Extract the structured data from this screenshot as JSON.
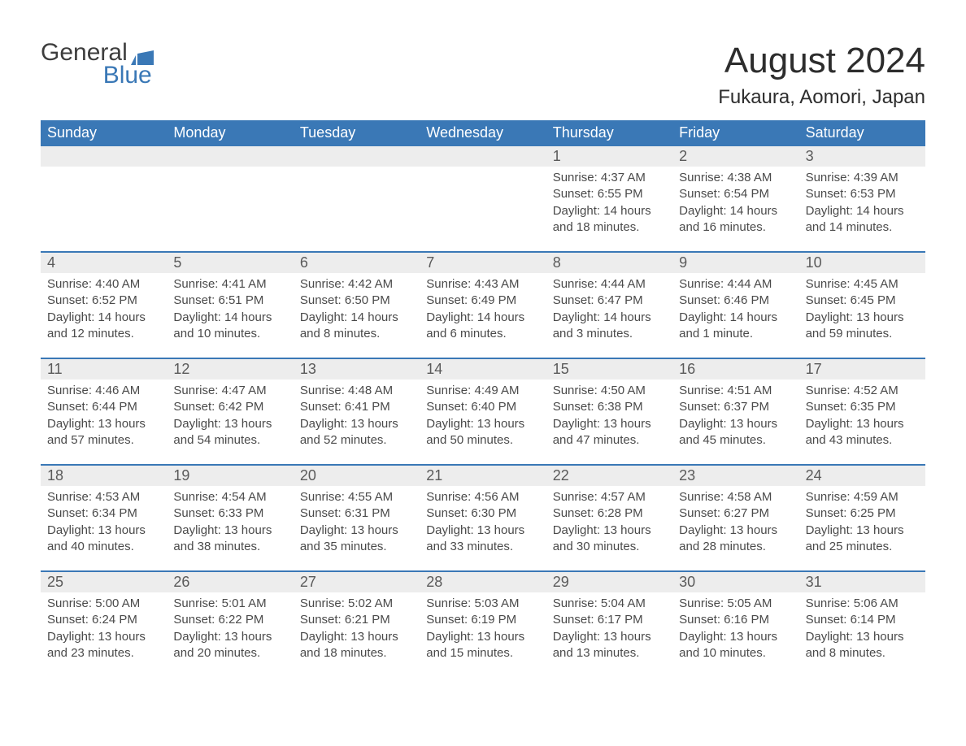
{
  "logo": {
    "word1": "General",
    "word2": "Blue"
  },
  "title": "August 2024",
  "location": "Fukaura, Aomori, Japan",
  "colors": {
    "brand_blue": "#3a78b6",
    "header_text": "#ffffff",
    "daynum_bg": "#ededed",
    "body_text": "#4a4a4a",
    "page_bg": "#ffffff"
  },
  "typography": {
    "title_fontsize": 44,
    "location_fontsize": 24,
    "dow_fontsize": 18,
    "daynum_fontsize": 18,
    "detail_fontsize": 15
  },
  "layout": {
    "type": "table",
    "columns": 7,
    "weeks": 5,
    "first_day_column_index": 4
  },
  "days_of_week": [
    "Sunday",
    "Monday",
    "Tuesday",
    "Wednesday",
    "Thursday",
    "Friday",
    "Saturday"
  ],
  "days": [
    {
      "n": 1,
      "sunrise": "4:37 AM",
      "sunset": "6:55 PM",
      "daylight": "14 hours and 18 minutes."
    },
    {
      "n": 2,
      "sunrise": "4:38 AM",
      "sunset": "6:54 PM",
      "daylight": "14 hours and 16 minutes."
    },
    {
      "n": 3,
      "sunrise": "4:39 AM",
      "sunset": "6:53 PM",
      "daylight": "14 hours and 14 minutes."
    },
    {
      "n": 4,
      "sunrise": "4:40 AM",
      "sunset": "6:52 PM",
      "daylight": "14 hours and 12 minutes."
    },
    {
      "n": 5,
      "sunrise": "4:41 AM",
      "sunset": "6:51 PM",
      "daylight": "14 hours and 10 minutes."
    },
    {
      "n": 6,
      "sunrise": "4:42 AM",
      "sunset": "6:50 PM",
      "daylight": "14 hours and 8 minutes."
    },
    {
      "n": 7,
      "sunrise": "4:43 AM",
      "sunset": "6:49 PM",
      "daylight": "14 hours and 6 minutes."
    },
    {
      "n": 8,
      "sunrise": "4:44 AM",
      "sunset": "6:47 PM",
      "daylight": "14 hours and 3 minutes."
    },
    {
      "n": 9,
      "sunrise": "4:44 AM",
      "sunset": "6:46 PM",
      "daylight": "14 hours and 1 minute."
    },
    {
      "n": 10,
      "sunrise": "4:45 AM",
      "sunset": "6:45 PM",
      "daylight": "13 hours and 59 minutes."
    },
    {
      "n": 11,
      "sunrise": "4:46 AM",
      "sunset": "6:44 PM",
      "daylight": "13 hours and 57 minutes."
    },
    {
      "n": 12,
      "sunrise": "4:47 AM",
      "sunset": "6:42 PM",
      "daylight": "13 hours and 54 minutes."
    },
    {
      "n": 13,
      "sunrise": "4:48 AM",
      "sunset": "6:41 PM",
      "daylight": "13 hours and 52 minutes."
    },
    {
      "n": 14,
      "sunrise": "4:49 AM",
      "sunset": "6:40 PM",
      "daylight": "13 hours and 50 minutes."
    },
    {
      "n": 15,
      "sunrise": "4:50 AM",
      "sunset": "6:38 PM",
      "daylight": "13 hours and 47 minutes."
    },
    {
      "n": 16,
      "sunrise": "4:51 AM",
      "sunset": "6:37 PM",
      "daylight": "13 hours and 45 minutes."
    },
    {
      "n": 17,
      "sunrise": "4:52 AM",
      "sunset": "6:35 PM",
      "daylight": "13 hours and 43 minutes."
    },
    {
      "n": 18,
      "sunrise": "4:53 AM",
      "sunset": "6:34 PM",
      "daylight": "13 hours and 40 minutes."
    },
    {
      "n": 19,
      "sunrise": "4:54 AM",
      "sunset": "6:33 PM",
      "daylight": "13 hours and 38 minutes."
    },
    {
      "n": 20,
      "sunrise": "4:55 AM",
      "sunset": "6:31 PM",
      "daylight": "13 hours and 35 minutes."
    },
    {
      "n": 21,
      "sunrise": "4:56 AM",
      "sunset": "6:30 PM",
      "daylight": "13 hours and 33 minutes."
    },
    {
      "n": 22,
      "sunrise": "4:57 AM",
      "sunset": "6:28 PM",
      "daylight": "13 hours and 30 minutes."
    },
    {
      "n": 23,
      "sunrise": "4:58 AM",
      "sunset": "6:27 PM",
      "daylight": "13 hours and 28 minutes."
    },
    {
      "n": 24,
      "sunrise": "4:59 AM",
      "sunset": "6:25 PM",
      "daylight": "13 hours and 25 minutes."
    },
    {
      "n": 25,
      "sunrise": "5:00 AM",
      "sunset": "6:24 PM",
      "daylight": "13 hours and 23 minutes."
    },
    {
      "n": 26,
      "sunrise": "5:01 AM",
      "sunset": "6:22 PM",
      "daylight": "13 hours and 20 minutes."
    },
    {
      "n": 27,
      "sunrise": "5:02 AM",
      "sunset": "6:21 PM",
      "daylight": "13 hours and 18 minutes."
    },
    {
      "n": 28,
      "sunrise": "5:03 AM",
      "sunset": "6:19 PM",
      "daylight": "13 hours and 15 minutes."
    },
    {
      "n": 29,
      "sunrise": "5:04 AM",
      "sunset": "6:17 PM",
      "daylight": "13 hours and 13 minutes."
    },
    {
      "n": 30,
      "sunrise": "5:05 AM",
      "sunset": "6:16 PM",
      "daylight": "13 hours and 10 minutes."
    },
    {
      "n": 31,
      "sunrise": "5:06 AM",
      "sunset": "6:14 PM",
      "daylight": "13 hours and 8 minutes."
    }
  ],
  "labels": {
    "sunrise_prefix": "Sunrise: ",
    "sunset_prefix": "Sunset: ",
    "daylight_prefix": "Daylight: "
  }
}
